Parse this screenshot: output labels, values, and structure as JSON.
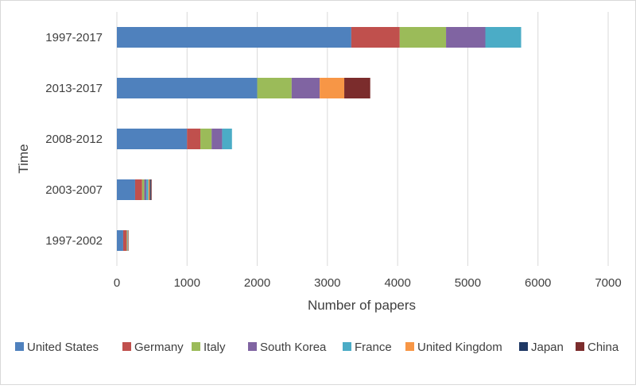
{
  "chart_data": {
    "type": "bar",
    "orientation": "horizontal",
    "stacked": true,
    "title": "",
    "xlabel": "Number of papers",
    "ylabel": "Time",
    "xlim": [
      0,
      7000
    ],
    "xticks": [
      0,
      1000,
      2000,
      3000,
      4000,
      5000,
      6000,
      7000
    ],
    "grid": "vertical",
    "legend_position": "bottom",
    "categories": [
      "1997-2017",
      "2013-2017",
      "2008-2012",
      "2003-2007",
      "1997-2002"
    ],
    "series": [
      {
        "name": "United States",
        "color": "#4F81BD",
        "values": [
          3340,
          2000,
          1000,
          260,
          90
        ]
      },
      {
        "name": "Germany",
        "color": "#C0504D",
        "values": [
          690,
          0,
          190,
          100,
          50
        ]
      },
      {
        "name": "Italy",
        "color": "#9BBB59",
        "values": [
          660,
          490,
          160,
          30,
          10
        ]
      },
      {
        "name": "South Korea",
        "color": "#8064A2",
        "values": [
          560,
          400,
          150,
          30,
          5
        ]
      },
      {
        "name": "France",
        "color": "#4BACC6",
        "values": [
          510,
          0,
          140,
          30,
          5
        ]
      },
      {
        "name": "United Kingdom",
        "color": "#F79646",
        "values": [
          0,
          350,
          0,
          20,
          5
        ]
      },
      {
        "name": "Japan",
        "color": "#1F3864",
        "values": [
          0,
          0,
          0,
          15,
          3
        ]
      },
      {
        "name": "China",
        "color": "#7B2C2C",
        "values": [
          0,
          370,
          0,
          10,
          2
        ]
      }
    ]
  }
}
